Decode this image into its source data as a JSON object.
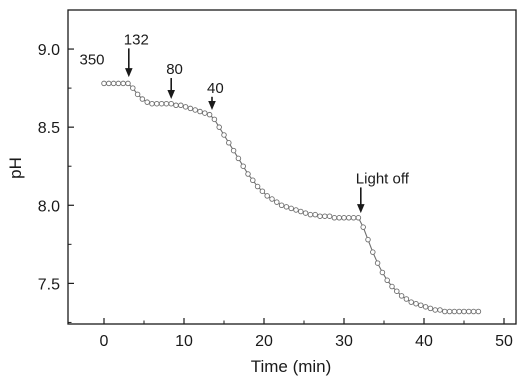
{
  "chart_data": {
    "type": "line",
    "title": "",
    "xlabel": "Time (min)",
    "ylabel": "pH",
    "xlim": [
      -4.5,
      51.5
    ],
    "ylim": [
      7.24,
      9.25
    ],
    "xticks": [
      0,
      10,
      20,
      30,
      40,
      50
    ],
    "yticks": [
      7.5,
      8.0,
      8.5,
      9.0
    ],
    "xtick_labels": [
      "0",
      "10",
      "20",
      "30",
      "40",
      "50"
    ],
    "ytick_labels": [
      "7.5",
      "8.0",
      "8.5",
      "9.0"
    ],
    "grid": false,
    "legend": "none",
    "series": [
      {
        "marker": "open-circle",
        "color": "#6f6f6f",
        "points": [
          [
            0.0,
            8.78
          ],
          [
            0.6,
            8.78
          ],
          [
            1.2,
            8.78
          ],
          [
            1.8,
            8.78
          ],
          [
            2.4,
            8.78
          ],
          [
            3.0,
            8.78
          ],
          [
            3.6,
            8.75
          ],
          [
            4.2,
            8.71
          ],
          [
            4.8,
            8.68
          ],
          [
            5.4,
            8.66
          ],
          [
            6.0,
            8.65
          ],
          [
            6.6,
            8.65
          ],
          [
            7.2,
            8.65
          ],
          [
            7.8,
            8.65
          ],
          [
            8.4,
            8.65
          ],
          [
            9.0,
            8.64
          ],
          [
            9.6,
            8.64
          ],
          [
            10.2,
            8.63
          ],
          [
            10.8,
            8.62
          ],
          [
            11.4,
            8.61
          ],
          [
            12.0,
            8.6
          ],
          [
            12.6,
            8.59
          ],
          [
            13.2,
            8.58
          ],
          [
            13.8,
            8.55
          ],
          [
            14.4,
            8.5
          ],
          [
            15.0,
            8.45
          ],
          [
            15.6,
            8.4
          ],
          [
            16.2,
            8.35
          ],
          [
            16.8,
            8.3
          ],
          [
            17.4,
            8.25
          ],
          [
            18.0,
            8.2
          ],
          [
            18.6,
            8.16
          ],
          [
            19.2,
            8.12
          ],
          [
            19.8,
            8.09
          ],
          [
            20.4,
            8.06
          ],
          [
            21.0,
            8.04
          ],
          [
            21.6,
            8.02
          ],
          [
            22.2,
            8.0
          ],
          [
            22.8,
            7.99
          ],
          [
            23.4,
            7.98
          ],
          [
            24.0,
            7.97
          ],
          [
            24.6,
            7.96
          ],
          [
            25.2,
            7.95
          ],
          [
            25.8,
            7.94
          ],
          [
            26.4,
            7.94
          ],
          [
            27.0,
            7.93
          ],
          [
            27.6,
            7.93
          ],
          [
            28.2,
            7.93
          ],
          [
            28.8,
            7.92
          ],
          [
            29.4,
            7.92
          ],
          [
            30.0,
            7.92
          ],
          [
            30.6,
            7.92
          ],
          [
            31.2,
            7.92
          ],
          [
            31.8,
            7.92
          ],
          [
            32.4,
            7.86
          ],
          [
            33.0,
            7.78
          ],
          [
            33.6,
            7.7
          ],
          [
            34.2,
            7.63
          ],
          [
            34.8,
            7.57
          ],
          [
            35.4,
            7.52
          ],
          [
            36.0,
            7.48
          ],
          [
            36.6,
            7.45
          ],
          [
            37.2,
            7.42
          ],
          [
            37.8,
            7.4
          ],
          [
            38.4,
            7.38
          ],
          [
            39.0,
            7.37
          ],
          [
            39.6,
            7.36
          ],
          [
            40.2,
            7.35
          ],
          [
            40.8,
            7.34
          ],
          [
            41.4,
            7.33
          ],
          [
            42.0,
            7.33
          ],
          [
            42.6,
            7.32
          ],
          [
            43.2,
            7.32
          ],
          [
            43.8,
            7.32
          ],
          [
            44.4,
            7.32
          ],
          [
            45.0,
            7.32
          ],
          [
            45.6,
            7.32
          ],
          [
            46.2,
            7.32
          ],
          [
            46.8,
            7.32
          ]
        ]
      }
    ],
    "annotations": [
      {
        "text": "350",
        "x": -1.5,
        "y": 8.9,
        "arrow": false
      },
      {
        "text": "132",
        "x": 3.1,
        "y": 9.03,
        "arrow": true,
        "arrow_tip_y": 8.82
      },
      {
        "text": "80",
        "x": 8.4,
        "y": 8.84,
        "arrow": true,
        "arrow_tip_y": 8.68
      },
      {
        "text": "40",
        "x": 13.5,
        "y": 8.72,
        "arrow": true,
        "arrow_tip_y": 8.61
      },
      {
        "text": "Light off",
        "x": 32.1,
        "y": 8.14,
        "arrow": true,
        "arrow_tip_y": 7.95
      }
    ]
  }
}
